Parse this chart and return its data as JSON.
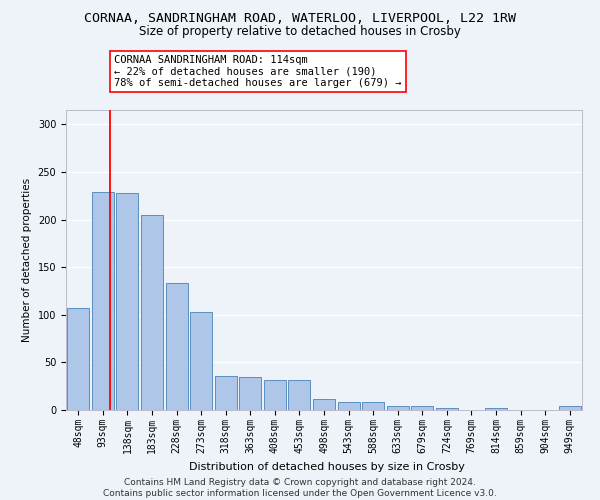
{
  "title": "CORNAA, SANDRINGHAM ROAD, WATERLOO, LIVERPOOL, L22 1RW",
  "subtitle": "Size of property relative to detached houses in Crosby",
  "xlabel": "Distribution of detached houses by size in Crosby",
  "ylabel": "Number of detached properties",
  "bar_labels": [
    "48sqm",
    "93sqm",
    "138sqm",
    "183sqm",
    "228sqm",
    "273sqm",
    "318sqm",
    "363sqm",
    "408sqm",
    "453sqm",
    "498sqm",
    "543sqm",
    "588sqm",
    "633sqm",
    "679sqm",
    "724sqm",
    "769sqm",
    "814sqm",
    "859sqm",
    "904sqm",
    "949sqm"
  ],
  "bar_values": [
    107,
    229,
    228,
    205,
    133,
    103,
    36,
    35,
    31,
    31,
    12,
    8,
    8,
    4,
    4,
    2,
    0,
    2,
    0,
    0,
    4
  ],
  "bar_color": "#aec6e8",
  "bar_edge_color": "#5a8fc0",
  "red_line_x": 1.3,
  "annotation_box_text": "CORNAA SANDRINGHAM ROAD: 114sqm\n← 22% of detached houses are smaller (190)\n78% of semi-detached houses are larger (679) →",
  "ylim": [
    0,
    315
  ],
  "yticks": [
    0,
    50,
    100,
    150,
    200,
    250,
    300
  ],
  "footer_text": "Contains HM Land Registry data © Crown copyright and database right 2024.\nContains public sector information licensed under the Open Government Licence v3.0.",
  "background_color": "#eef2f9",
  "grid_color": "#ffffff",
  "title_fontsize": 9.5,
  "subtitle_fontsize": 8.5,
  "xlabel_fontsize": 8,
  "ylabel_fontsize": 7.5,
  "tick_fontsize": 7,
  "annotation_fontsize": 7.5,
  "footer_fontsize": 6.5
}
